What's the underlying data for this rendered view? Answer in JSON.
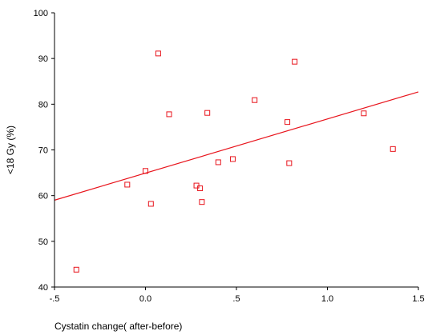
{
  "chart_data": {
    "type": "scatter",
    "xlabel": "Cystatin change( after-before)",
    "ylabel": "<18 Gy (%)",
    "xlim": [
      -0.5,
      1.5
    ],
    "ylim": [
      40,
      100
    ],
    "x_ticks": [
      -0.5,
      0.0,
      0.5,
      1.0,
      1.5
    ],
    "x_tick_labels": [
      "-.5",
      "0.0",
      ".5",
      "1.0",
      "1.5"
    ],
    "y_ticks": [
      40,
      50,
      60,
      70,
      80,
      90,
      100
    ],
    "y_tick_labels": [
      "40",
      "50",
      "60",
      "70",
      "80",
      "90",
      "100"
    ],
    "grid": false,
    "colors": {
      "points": "#e8141c",
      "fit_line": "#e8141c",
      "axes": "#000000"
    },
    "points": [
      {
        "x": -0.38,
        "y": 43.8
      },
      {
        "x": -0.1,
        "y": 62.4
      },
      {
        "x": 0.0,
        "y": 65.4
      },
      {
        "x": 0.03,
        "y": 58.2
      },
      {
        "x": 0.07,
        "y": 91.1
      },
      {
        "x": 0.13,
        "y": 77.8
      },
      {
        "x": 0.28,
        "y": 62.2
      },
      {
        "x": 0.3,
        "y": 61.6
      },
      {
        "x": 0.31,
        "y": 58.6
      },
      {
        "x": 0.34,
        "y": 78.1
      },
      {
        "x": 0.4,
        "y": 67.3
      },
      {
        "x": 0.48,
        "y": 68.0
      },
      {
        "x": 0.6,
        "y": 80.9
      },
      {
        "x": 0.78,
        "y": 76.1
      },
      {
        "x": 0.79,
        "y": 67.1
      },
      {
        "x": 0.82,
        "y": 89.3
      },
      {
        "x": 1.2,
        "y": 78.0
      },
      {
        "x": 1.36,
        "y": 70.2
      }
    ],
    "fit_line": {
      "x1": -0.5,
      "y1": 59.0,
      "x2": 1.5,
      "y2": 82.7
    }
  }
}
